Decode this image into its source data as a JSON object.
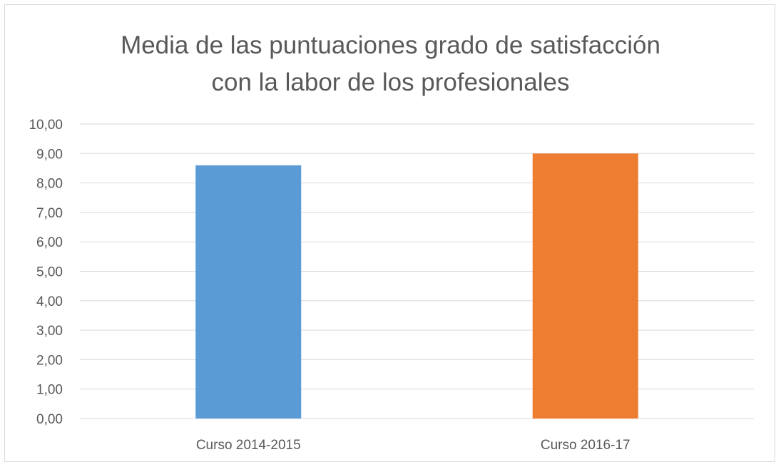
{
  "chart_data": {
    "type": "bar",
    "title_lines": [
      "Media de las puntuaciones grado de satisfacción",
      "con la labor de los profesionales"
    ],
    "categories": [
      "Curso 2014-2015",
      "Curso 2016-17"
    ],
    "values": [
      8.6,
      9.0
    ],
    "colors": [
      "#5b9bd5",
      "#ed7d31"
    ],
    "ylim": [
      0,
      10
    ],
    "y_tick_step": 1,
    "y_tick_labels": [
      "0,00",
      "1,00",
      "2,00",
      "3,00",
      "4,00",
      "5,00",
      "6,00",
      "7,00",
      "8,00",
      "9,00",
      "10,00"
    ],
    "grid": true,
    "gridline_color": "#d9d9d9",
    "legend": "none"
  }
}
